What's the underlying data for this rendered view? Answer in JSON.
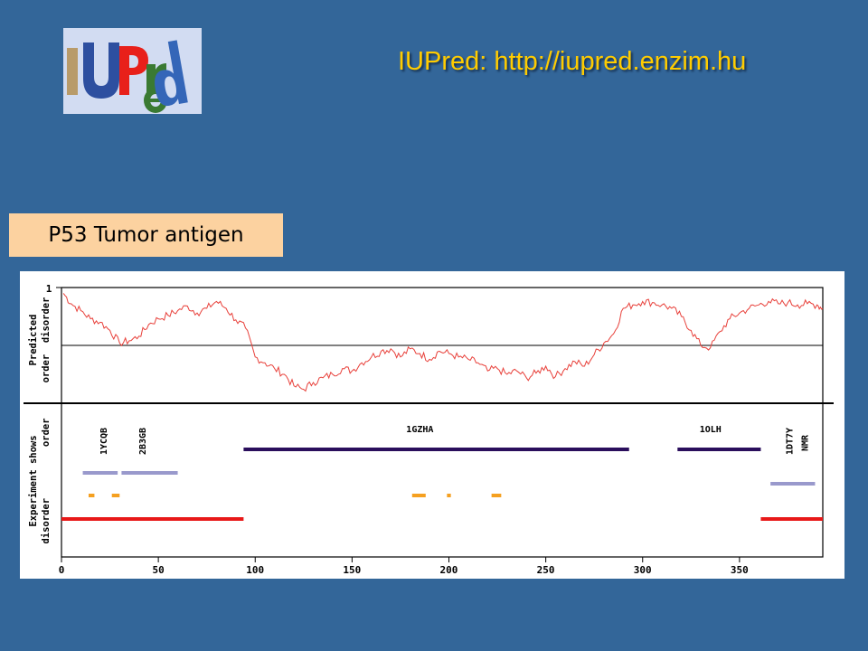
{
  "header": {
    "logo_text": "IUPred",
    "title": "IUPred: http://iupred.enzim.hu"
  },
  "protein_label": "P53 Tumor antigen",
  "colors": {
    "background": "#336699",
    "title": "#ffcc00",
    "label_box": "#fcd2a0",
    "prediction_line": "#e8403a",
    "ordered_structure": "#2a0e5c",
    "pdb_fragment": "#9999cc",
    "short_segment": "#f5a020",
    "disorder": "#e81818"
  },
  "chart_data": {
    "type": "line",
    "xlim": [
      0,
      393
    ],
    "x_ticks": [
      0,
      50,
      100,
      150,
      200,
      250,
      300,
      350
    ],
    "top_panel": {
      "ylabel_lines": [
        "Predicted",
        "order  disorder"
      ],
      "y_tick": "1",
      "ylim": [
        0,
        1
      ],
      "threshold": 0.5,
      "series": {
        "x": [
          1,
          5,
          10,
          15,
          20,
          25,
          30,
          35,
          40,
          45,
          50,
          55,
          60,
          65,
          70,
          75,
          80,
          85,
          90,
          95,
          100,
          105,
          110,
          115,
          120,
          125,
          130,
          135,
          140,
          145,
          150,
          155,
          160,
          165,
          170,
          175,
          180,
          185,
          190,
          195,
          200,
          205,
          210,
          215,
          220,
          225,
          230,
          235,
          240,
          245,
          250,
          255,
          260,
          265,
          270,
          275,
          280,
          285,
          290,
          295,
          300,
          305,
          310,
          315,
          320,
          325,
          330,
          335,
          340,
          345,
          350,
          355,
          360,
          365,
          370,
          375,
          380,
          385,
          390,
          393
        ],
        "y": [
          0.95,
          0.86,
          0.8,
          0.73,
          0.7,
          0.63,
          0.52,
          0.54,
          0.58,
          0.68,
          0.73,
          0.76,
          0.8,
          0.84,
          0.78,
          0.82,
          0.88,
          0.82,
          0.72,
          0.65,
          0.4,
          0.35,
          0.3,
          0.25,
          0.15,
          0.12,
          0.18,
          0.22,
          0.25,
          0.3,
          0.28,
          0.35,
          0.4,
          0.45,
          0.47,
          0.4,
          0.47,
          0.43,
          0.38,
          0.45,
          0.43,
          0.4,
          0.38,
          0.35,
          0.28,
          0.3,
          0.25,
          0.28,
          0.22,
          0.26,
          0.32,
          0.23,
          0.3,
          0.36,
          0.32,
          0.42,
          0.52,
          0.6,
          0.82,
          0.85,
          0.88,
          0.87,
          0.85,
          0.82,
          0.75,
          0.63,
          0.5,
          0.48,
          0.62,
          0.73,
          0.78,
          0.82,
          0.85,
          0.88,
          0.86,
          0.87,
          0.85,
          0.86,
          0.85,
          0.82
        ]
      }
    },
    "bottom_panel": {
      "ylabel_lines": [
        "Experiment shows",
        "disorder         order"
      ],
      "labels": [
        {
          "text": "1YCQB",
          "x": 22,
          "vertical": true
        },
        {
          "text": "2B3GB",
          "x": 42,
          "vertical": true
        },
        {
          "text": "1GZHA",
          "x": 185,
          "vertical": false
        },
        {
          "text": "1OLH",
          "x": 335,
          "vertical": false
        },
        {
          "text": "1DT7Y",
          "x": 376,
          "vertical": true
        },
        {
          "text": "NMR",
          "x": 384,
          "vertical": true
        }
      ],
      "segments": [
        {
          "start": 94,
          "end": 293,
          "track": "order",
          "color": "ordered_structure"
        },
        {
          "start": 318,
          "end": 361,
          "track": "order",
          "color": "ordered_structure"
        },
        {
          "start": 11,
          "end": 29,
          "track": "fragment",
          "color": "pdb_fragment"
        },
        {
          "start": 31,
          "end": 60,
          "track": "fragment",
          "color": "pdb_fragment"
        },
        {
          "start": 366,
          "end": 389,
          "track": "fragment2",
          "color": "pdb_fragment"
        },
        {
          "start": 14,
          "end": 17,
          "track": "short",
          "color": "short_segment"
        },
        {
          "start": 26,
          "end": 30,
          "track": "short",
          "color": "short_segment"
        },
        {
          "start": 181,
          "end": 188,
          "track": "short",
          "color": "short_segment"
        },
        {
          "start": 199,
          "end": 201,
          "track": "short",
          "color": "short_segment"
        },
        {
          "start": 222,
          "end": 227,
          "track": "short",
          "color": "short_segment"
        },
        {
          "start": 0,
          "end": 94,
          "track": "disorder",
          "color": "disorder"
        },
        {
          "start": 361,
          "end": 393,
          "track": "disorder",
          "color": "disorder"
        }
      ]
    }
  }
}
